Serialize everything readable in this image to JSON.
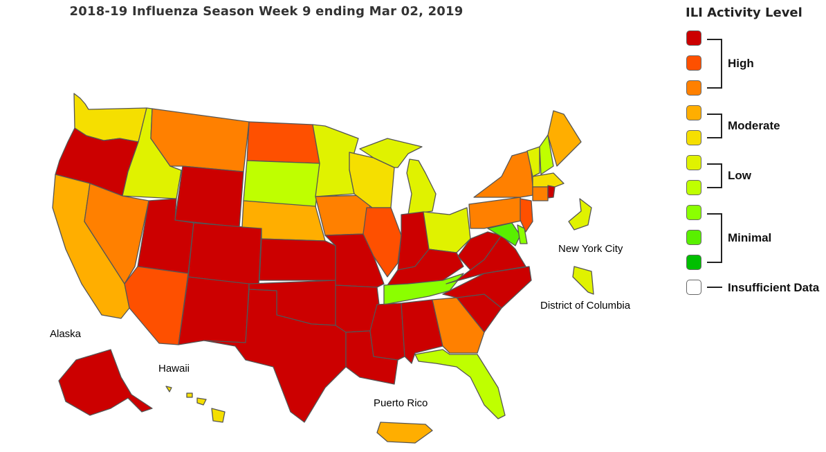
{
  "title": "2018-19 Influenza Season Week 9 ending Mar 02, 2019",
  "legend": {
    "title": "ILI Activity Level",
    "levels": [
      {
        "level": 10,
        "color": "#cc0000"
      },
      {
        "level": 9,
        "color": "#fe5000"
      },
      {
        "level": 8,
        "color": "#ff8000"
      },
      {
        "level": 7,
        "color": "#ffae00"
      },
      {
        "level": 6,
        "color": "#f5df00"
      },
      {
        "level": 5,
        "color": "#e0f200"
      },
      {
        "level": 4,
        "color": "#bfff00"
      },
      {
        "level": 3,
        "color": "#8bff00"
      },
      {
        "level": 2,
        "color": "#59f000"
      },
      {
        "level": 1,
        "color": "#00bf00"
      }
    ],
    "groups": [
      "High",
      "Moderate",
      "Low",
      "Minimal"
    ],
    "insufficient_label": "Insufficient Data",
    "insufficient_color": "#ffffff"
  },
  "labels": {
    "new_york_city": "New York City",
    "district_of_columbia": "District of Columbia",
    "alaska": "Alaska",
    "hawaii": "Hawaii",
    "puerto_rico": "Puerto Rico"
  },
  "regions": {
    "WA": 6,
    "OR": 10,
    "CA": 7,
    "ID": 5,
    "NV": 8,
    "MT": 8,
    "WY": 10,
    "UT": 10,
    "AZ": 9,
    "CO": 10,
    "NM": 10,
    "ND": 9,
    "SD": 4,
    "NE": 7,
    "KS": 10,
    "OK": 10,
    "TX": 10,
    "MN": 5,
    "IA": 8,
    "MO": 10,
    "AR": 10,
    "LA": 10,
    "WI": 6,
    "IL": 9,
    "MI": 5,
    "IN": 10,
    "OH": 5,
    "KY": 10,
    "TN": 3,
    "MS": 10,
    "AL": 10,
    "GA": 8,
    "FL": 4,
    "SC": 10,
    "NC": 10,
    "VA": 10,
    "WV": 10,
    "PA": 8,
    "NY": 8,
    "NJ": 9,
    "MD": 2,
    "DE": 3,
    "VT": 5,
    "NH": 4,
    "ME": 7,
    "MA": 6,
    "CT": 8,
    "RI": 10,
    "AK": 10,
    "HI": 6,
    "PR": 7,
    "NYC": 5,
    "DC": 5
  }
}
